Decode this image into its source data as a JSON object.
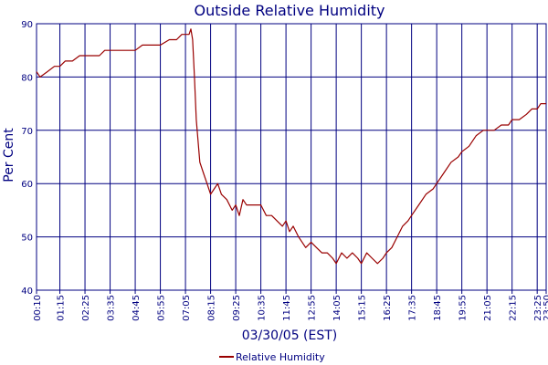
{
  "chart_data": {
    "type": "line",
    "title": "Outside Relative Humidity",
    "xlabel": "03/30/05 (EST)",
    "ylabel": "Per Cent",
    "ylim": [
      40,
      90
    ],
    "yticks": [
      40,
      50,
      60,
      70,
      80,
      90
    ],
    "xticks": [
      "00:10",
      "01:15",
      "02:25",
      "03:35",
      "04:45",
      "05:55",
      "07:05",
      "08:15",
      "09:25",
      "10:35",
      "11:45",
      "12:55",
      "14:05",
      "15:15",
      "16:25",
      "17:35",
      "18:45",
      "19:55",
      "21:05",
      "22:15",
      "23:25",
      "23:50"
    ],
    "grid": true,
    "legend_position": "bottom-center",
    "colors": {
      "line": "#990000",
      "grid": "#000080",
      "axis": "#000080",
      "text": "#000080"
    },
    "series": [
      {
        "name": "Relative Humidity",
        "x": [
          "00:10",
          "00:20",
          "00:40",
          "01:00",
          "01:15",
          "01:30",
          "01:50",
          "02:10",
          "02:25",
          "02:45",
          "03:05",
          "03:20",
          "03:35",
          "04:00",
          "04:20",
          "04:45",
          "05:05",
          "05:25",
          "05:55",
          "06:20",
          "06:40",
          "06:55",
          "07:05",
          "07:15",
          "07:20",
          "07:25",
          "07:30",
          "07:35",
          "07:45",
          "07:55",
          "08:05",
          "08:15",
          "08:25",
          "08:35",
          "08:45",
          "09:00",
          "09:15",
          "09:25",
          "09:35",
          "09:45",
          "09:55",
          "10:05",
          "10:15",
          "10:25",
          "10:35",
          "10:50",
          "11:05",
          "11:20",
          "11:35",
          "11:45",
          "11:55",
          "12:05",
          "12:20",
          "12:30",
          "12:40",
          "12:55",
          "13:10",
          "13:25",
          "13:40",
          "13:55",
          "14:05",
          "14:20",
          "14:35",
          "14:50",
          "15:05",
          "15:15",
          "15:30",
          "15:45",
          "16:00",
          "16:15",
          "16:25",
          "16:40",
          "16:55",
          "17:10",
          "17:25",
          "17:35",
          "17:55",
          "18:15",
          "18:35",
          "18:45",
          "19:05",
          "19:25",
          "19:45",
          "19:55",
          "20:15",
          "20:35",
          "20:55",
          "21:05",
          "21:25",
          "21:45",
          "22:05",
          "22:15",
          "22:35",
          "22:55",
          "23:10",
          "23:25",
          "23:35",
          "23:50"
        ],
        "values": [
          81,
          80,
          81,
          82,
          82,
          83,
          83,
          84,
          84,
          84,
          84,
          85,
          85,
          85,
          85,
          85,
          86,
          86,
          86,
          87,
          87,
          88,
          88,
          88,
          89,
          87,
          80,
          72,
          64,
          62,
          60,
          58,
          59,
          60,
          58,
          57,
          55,
          56,
          54,
          57,
          56,
          56,
          56,
          56,
          56,
          54,
          54,
          53,
          52,
          53,
          51,
          52,
          50,
          49,
          48,
          49,
          48,
          47,
          47,
          46,
          45,
          47,
          46,
          47,
          46,
          45,
          47,
          46,
          45,
          46,
          47,
          48,
          50,
          52,
          53,
          54,
          56,
          58,
          59,
          60,
          62,
          64,
          65,
          66,
          67,
          69,
          70,
          70,
          70,
          71,
          71,
          72,
          72,
          73,
          74,
          74,
          75,
          75
        ]
      }
    ]
  }
}
